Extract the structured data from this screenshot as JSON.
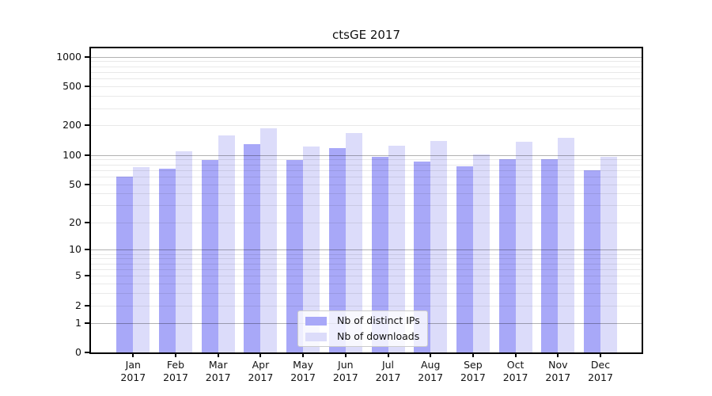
{
  "title": "ctsGE 2017",
  "colors": {
    "distinct_ips": "#a8a8f8",
    "downloads": "#dcdcfa",
    "major_grid": "#b3b3b3",
    "minor_grid": "#e8e8e8",
    "axis": "#000000"
  },
  "chart_data": {
    "type": "bar",
    "title": "ctsGE 2017",
    "categories": [
      "Jan 2017",
      "Feb 2017",
      "Mar 2017",
      "Apr 2017",
      "May 2017",
      "Jun 2017",
      "Jul 2017",
      "Aug 2017",
      "Sep 2017",
      "Oct 2017",
      "Nov 2017",
      "Dec 2017"
    ],
    "series": [
      {
        "name": "Nb of distinct IPs",
        "color": "#a8a8f8",
        "values": [
          60,
          72,
          88,
          129,
          88,
          118,
          95,
          86,
          76,
          90,
          90,
          69
        ]
      },
      {
        "name": "Nb of downloads",
        "color": "#dcdcfa",
        "values": [
          75,
          109,
          158,
          188,
          123,
          167,
          124,
          139,
          101,
          136,
          149,
          96
        ]
      }
    ],
    "xlabel": "",
    "ylabel": "",
    "yscale": "log1p",
    "yticks": [
      0,
      1,
      2,
      5,
      10,
      20,
      50,
      100,
      200,
      500,
      1000
    ],
    "minor_gridlines": [
      2,
      3,
      4,
      5,
      6,
      7,
      8,
      9,
      20,
      30,
      40,
      50,
      60,
      70,
      80,
      90,
      200,
      300,
      400,
      500,
      600,
      700,
      800,
      900
    ],
    "major_gridlines": [
      1,
      10,
      100,
      1000
    ],
    "ylim": [
      0,
      1220
    ],
    "grid": true,
    "legend_position": "lower-center"
  }
}
